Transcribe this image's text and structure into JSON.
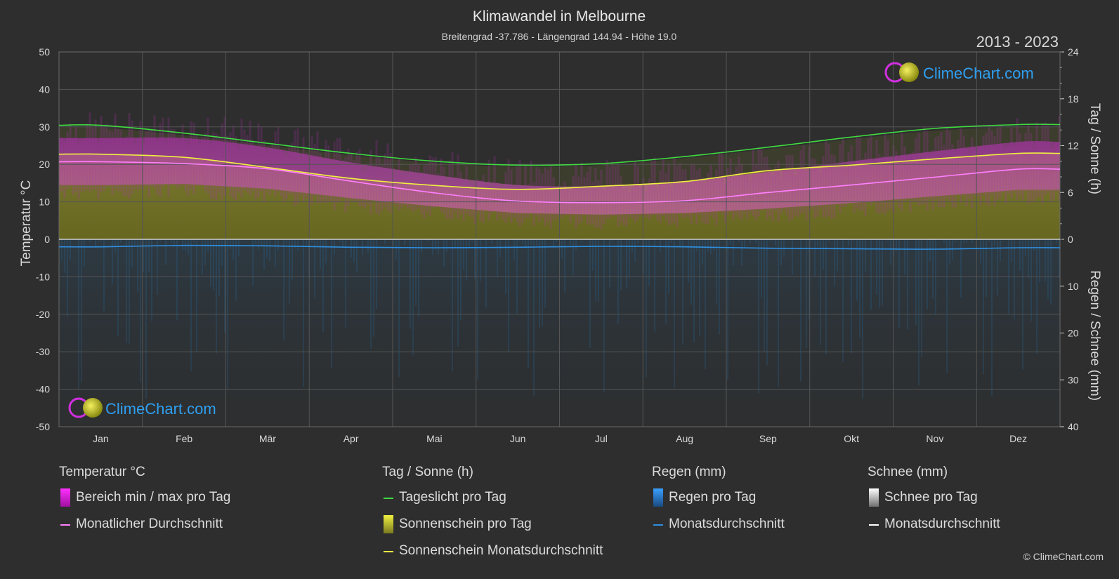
{
  "header": {
    "title": "Klimawandel in Melbourne",
    "subtitle": "Breitengrad -37.786 - Längengrad 144.94 - Höhe 19.0",
    "period": "2013 - 2023"
  },
  "brand": {
    "name": "ClimeChart.com",
    "copyright": "© ClimeChart.com"
  },
  "colors": {
    "background": "#2e2e2e",
    "grid": "#555555",
    "temp_range": "#d040d0",
    "temp_avg": "#ff80ff",
    "daylight": "#3fdc3f",
    "sunshine_fill": "#9a9a2a",
    "sunshine_avg": "#f0f040",
    "rain_fill": "#2a5a80",
    "rain_avg": "#2f8fe0",
    "snow_avg": "#ffffff",
    "brand_text": "#2f9ff0"
  },
  "chart_data": {
    "type": "line",
    "title": "Klimawandel in Melbourne",
    "categories": [
      "Jan",
      "Feb",
      "Mär",
      "Apr",
      "Mai",
      "Jun",
      "Jul",
      "Aug",
      "Sep",
      "Okt",
      "Nov",
      "Dez"
    ],
    "axes": {
      "left": {
        "label": "Temperatur °C",
        "range": [
          -50,
          50
        ],
        "ticks": [
          50,
          40,
          30,
          20,
          10,
          0,
          -10,
          -20,
          -30,
          -40,
          -50
        ]
      },
      "right_top": {
        "label": "Tag / Sonne (h)",
        "range": [
          0,
          24
        ],
        "ticks": [
          24,
          18,
          12,
          6,
          0
        ]
      },
      "right_bottom": {
        "label": "Regen / Schnee (mm)",
        "range": [
          0,
          40
        ],
        "ticks": [
          0,
          10,
          20,
          30,
          40
        ]
      }
    },
    "grid": true,
    "series": [
      {
        "name": "Tageslicht pro Tag",
        "unit": "h",
        "axis": "right_top",
        "values": [
          14.6,
          13.6,
          12.3,
          11.0,
          10.0,
          9.5,
          9.7,
          10.6,
          11.8,
          13.1,
          14.2,
          14.7
        ]
      },
      {
        "name": "Sonnenschein Monatsdurchschnitt",
        "unit": "h",
        "axis": "right_top",
        "values": [
          10.9,
          10.5,
          9.2,
          7.8,
          6.9,
          6.4,
          6.8,
          7.4,
          8.8,
          9.5,
          10.3,
          11.0
        ]
      },
      {
        "name": "Monatlicher Durchschnitt",
        "unit": "°C",
        "axis": "left",
        "values": [
          20.7,
          20.2,
          18.8,
          15.5,
          12.4,
          10.2,
          9.8,
          10.3,
          12.5,
          14.5,
          16.6,
          18.7
        ]
      },
      {
        "name": "Bereich min / max pro Tag",
        "unit": "°C",
        "axis": "left",
        "min": [
          14.5,
          14.8,
          13.5,
          11.0,
          8.8,
          7.0,
          6.6,
          7.0,
          8.2,
          9.7,
          11.5,
          13.2
        ],
        "max": [
          27.0,
          27.0,
          24.5,
          20.5,
          17.2,
          14.5,
          14.2,
          15.5,
          18.0,
          20.8,
          23.5,
          26.0
        ]
      },
      {
        "name": "Regen Monatsdurchschnitt",
        "unit": "mm",
        "axis": "right_bottom",
        "values": [
          1.6,
          1.3,
          1.4,
          1.7,
          1.8,
          1.7,
          1.5,
          1.6,
          1.9,
          2.0,
          2.1,
          1.8
        ]
      },
      {
        "name": "Schnee Monatsdurchschnitt",
        "unit": "mm",
        "axis": "right_bottom",
        "values": [
          0,
          0,
          0,
          0,
          0,
          0,
          0,
          0,
          0,
          0,
          0,
          0
        ]
      }
    ]
  },
  "legend": {
    "groups": [
      {
        "title": "Temperatur °C",
        "items": [
          {
            "label": "Bereich min / max pro Tag",
            "swatch": "box",
            "color": "#d020d0"
          },
          {
            "label": "Monatlicher Durchschnitt",
            "swatch": "line",
            "color": "#ff80ff"
          }
        ]
      },
      {
        "title": "Tag / Sonne (h)",
        "items": [
          {
            "label": "Tageslicht pro Tag",
            "swatch": "line",
            "color": "#3fdc3f"
          },
          {
            "label": "Sonnenschein pro Tag",
            "swatch": "box",
            "color": "#d8d830"
          },
          {
            "label": "Sonnenschein Monatsdurchschnitt",
            "swatch": "line",
            "color": "#f0f040"
          }
        ]
      },
      {
        "title": "Regen (mm)",
        "items": [
          {
            "label": "Regen pro Tag",
            "swatch": "box",
            "color": "#2f8fe0"
          },
          {
            "label": "Monatsdurchschnitt",
            "swatch": "line",
            "color": "#2f8fe0"
          }
        ]
      },
      {
        "title": "Schnee (mm)",
        "items": [
          {
            "label": "Schnee pro Tag",
            "swatch": "box",
            "color": "#e0e0e0"
          },
          {
            "label": "Monatsdurchschnitt",
            "swatch": "line",
            "color": "#ffffff"
          }
        ]
      }
    ]
  }
}
